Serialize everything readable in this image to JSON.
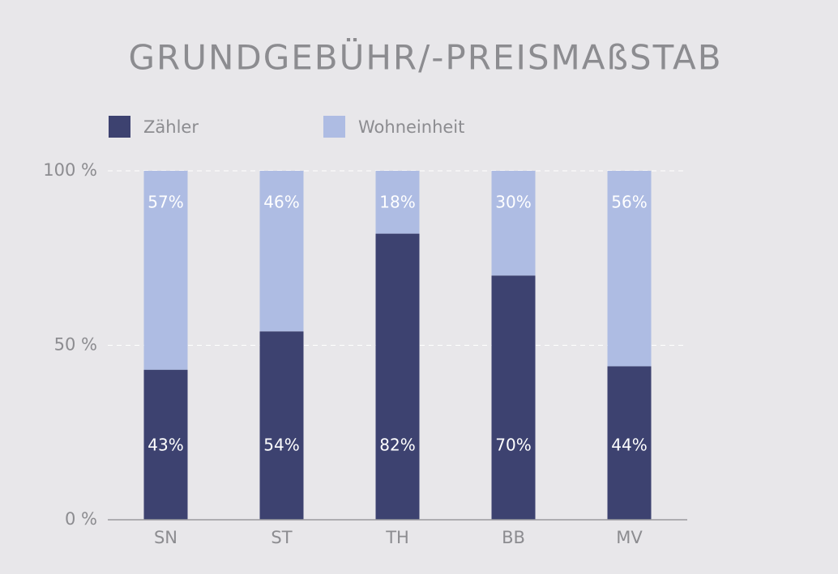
{
  "chart_data": {
    "type": "stacked_bar",
    "title": "GRUNDGEBÜHR/-PREISMAßSTAB",
    "categories": [
      "SN",
      "ST",
      "TH",
      "BB",
      "MV"
    ],
    "series": [
      {
        "name": "Zähler",
        "color": "#3d4270",
        "values": [
          43,
          54,
          82,
          70,
          44
        ],
        "value_labels": [
          "43%",
          "54%",
          "82%",
          "70%",
          "44%"
        ]
      },
      {
        "name": "Wohneinheit",
        "color": "#aebce3",
        "values": [
          57,
          46,
          18,
          30,
          56
        ],
        "value_labels": [
          "57%",
          "46%",
          "18%",
          "30%",
          "56%"
        ]
      }
    ],
    "ylim": [
      0,
      100
    ],
    "yticks": [
      {
        "value": 0,
        "label": "0 %"
      },
      {
        "value": 50,
        "label": "50 %"
      },
      {
        "value": 100,
        "label": "100 %"
      }
    ],
    "grid": true
  }
}
